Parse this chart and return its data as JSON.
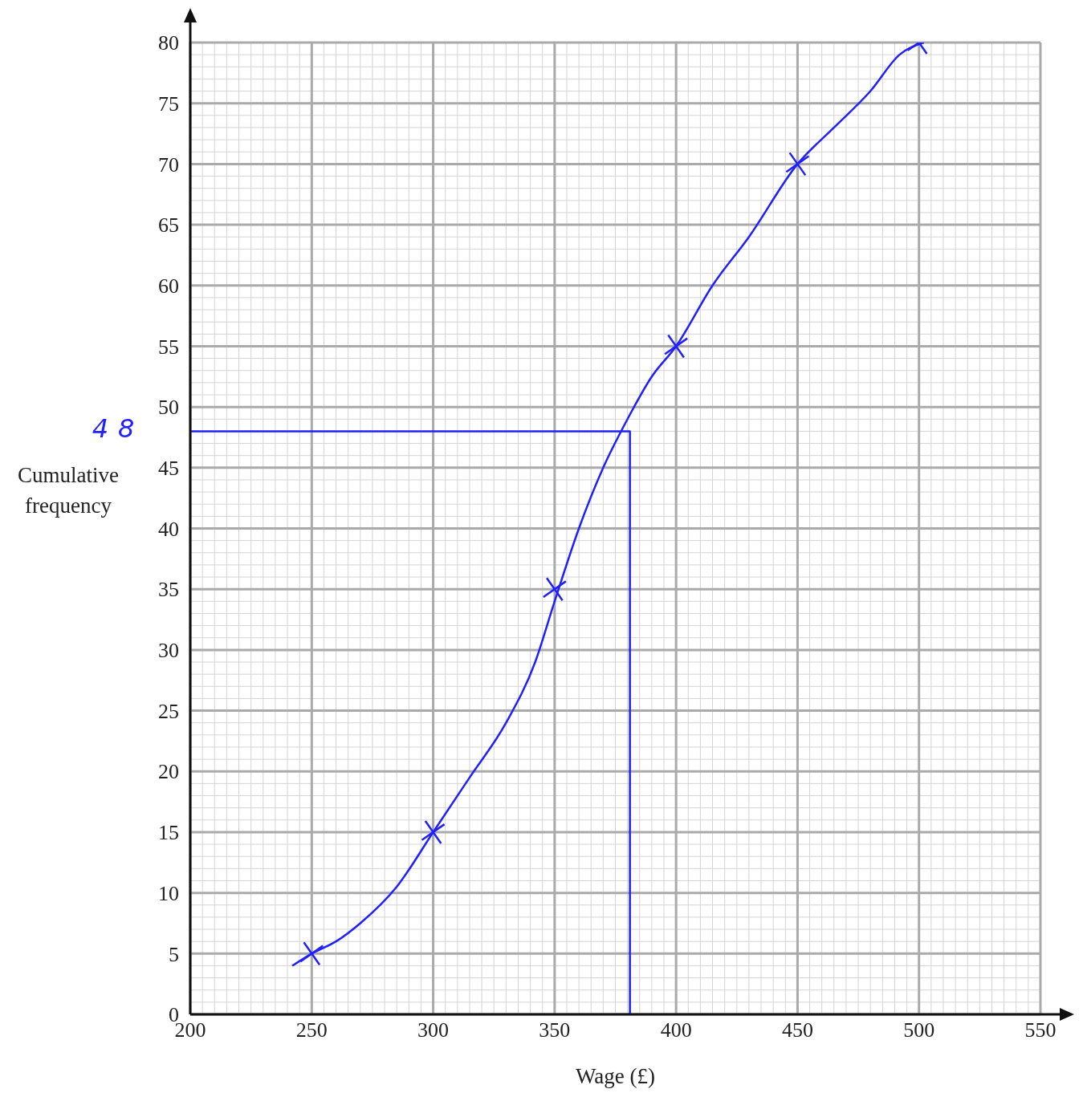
{
  "chart_data": {
    "type": "line",
    "xlabel": "Wage (£)",
    "ylabel": "Cumulative frequency",
    "xlim": [
      200,
      550
    ],
    "xticks": [
      200,
      250,
      300,
      350,
      400,
      450,
      500,
      550
    ],
    "ylim": [
      0,
      80
    ],
    "yticks": [
      0,
      5,
      10,
      15,
      20,
      25,
      30,
      35,
      40,
      45,
      50,
      55,
      60,
      65,
      70,
      75,
      80
    ],
    "grid": true,
    "annotations": [
      {
        "text": "48",
        "x": 200,
        "y": 48
      }
    ],
    "series": [
      {
        "color": "#1f1fff",
        "marker": "none",
        "x": [
          242,
          250,
          260,
          270,
          285,
          300,
          315,
          330,
          342,
          350,
          360,
          370,
          380,
          390,
          400,
          415,
          430,
          450,
          465,
          480,
          492,
          502
        ],
        "values": [
          4,
          5,
          6,
          7.5,
          10.5,
          15,
          19.5,
          24,
          29,
          34,
          40,
          45,
          49,
          52.5,
          55,
          60,
          64,
          70,
          73,
          76,
          79,
          80
        ]
      },
      {
        "type": "scatter",
        "color": "#1f1fff",
        "marker": "cross",
        "x": [
          250,
          300,
          350,
          400,
          450,
          500
        ],
        "values": [
          5,
          15,
          35,
          55,
          70,
          80
        ]
      },
      {
        "color": "#1f1fff",
        "marker": "none",
        "x": [
          200,
          381,
          381
        ],
        "values": [
          48,
          48,
          0
        ]
      }
    ]
  }
}
